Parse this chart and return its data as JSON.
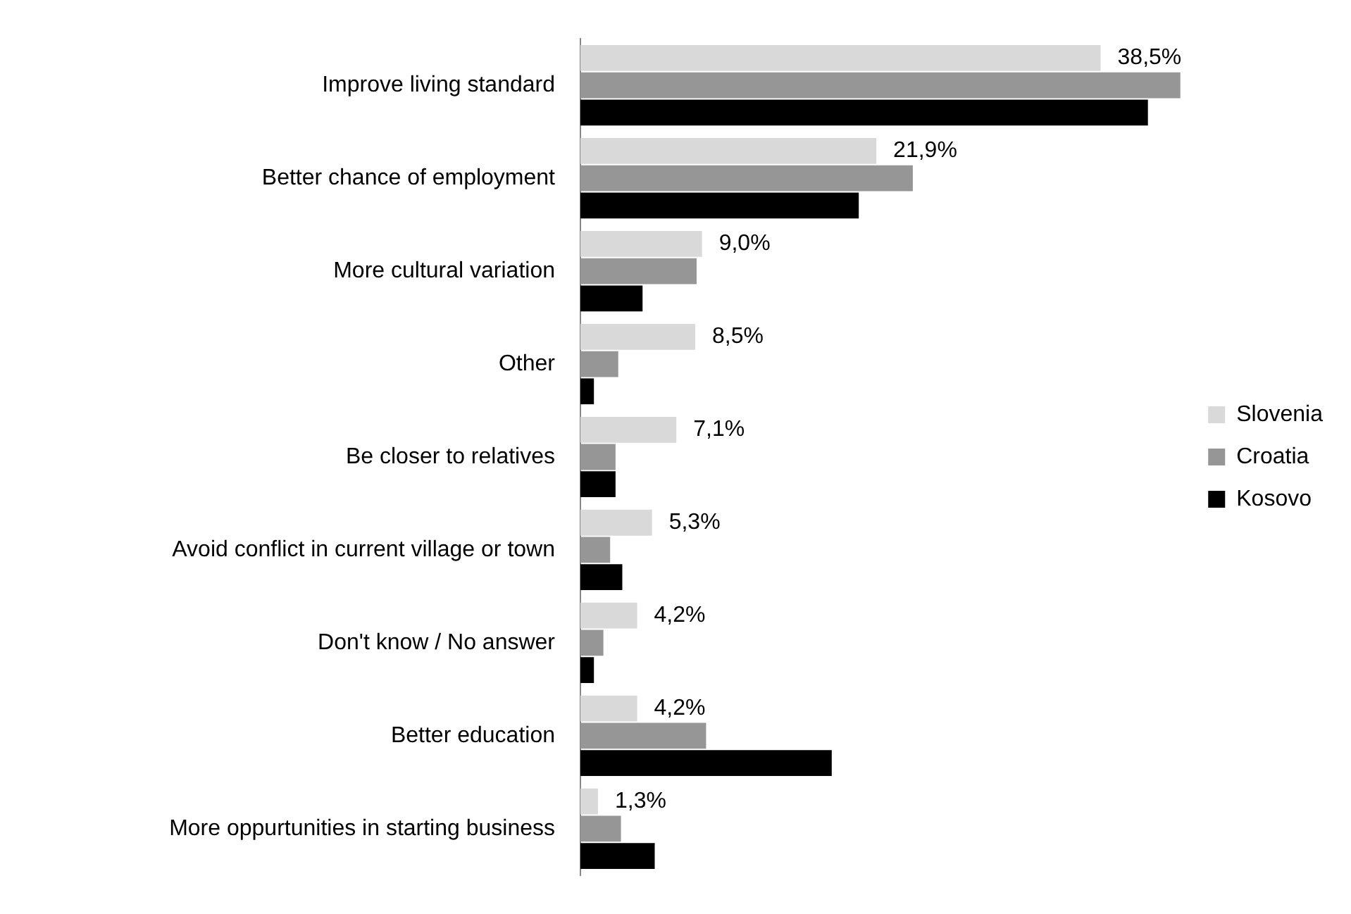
{
  "chart_data": {
    "type": "bar",
    "orientation": "horizontal",
    "tick_labels": "y",
    "legend": "right",
    "categories": [
      "Improve living standard",
      "Better chance of employment",
      "More cultural variation",
      "Other",
      "Be closer to relatives",
      "Avoid conflict in current village or town",
      "Don't know / No answer",
      "Better education",
      "More oppurtunities in starting business"
    ],
    "series": [
      {
        "name": "Slovenia",
        "color": "#d9d9d9",
        "values": [
          38.5,
          21.9,
          9.0,
          8.5,
          7.1,
          5.3,
          4.2,
          4.2,
          1.3
        ],
        "value_labels": [
          "38,5%",
          "21,9%",
          "9,0%",
          "8,5%",
          "7,1%",
          "5,3%",
          "4,2%",
          "4,2%",
          "1,3%"
        ]
      },
      {
        "name": "Croatia",
        "color": "#969696",
        "values": [
          44.4,
          24.6,
          8.6,
          2.8,
          2.6,
          2.2,
          1.7,
          9.3,
          3.0
        ]
      },
      {
        "name": "Kosovo",
        "color": "#000000",
        "values": [
          42.0,
          20.6,
          4.6,
          1.0,
          2.6,
          3.1,
          1.0,
          18.6,
          5.5
        ]
      }
    ]
  }
}
